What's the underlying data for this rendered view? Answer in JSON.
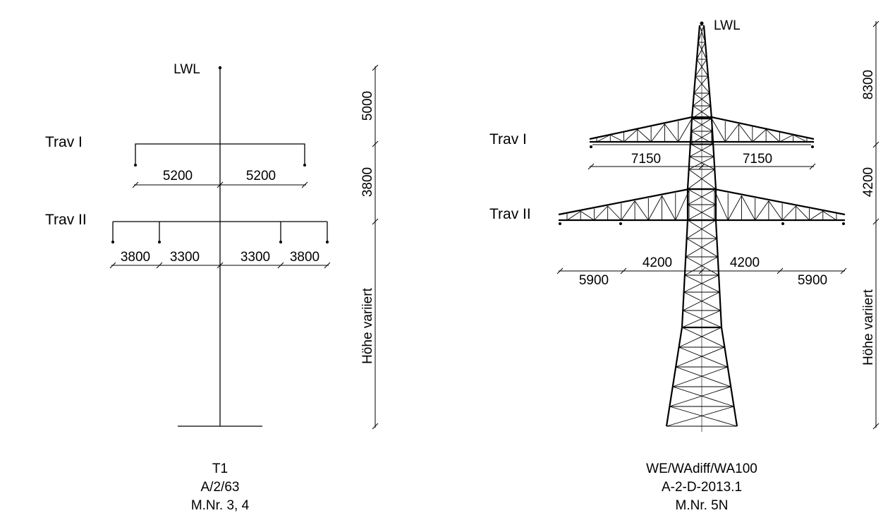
{
  "left_tower": {
    "top_label": "LWL",
    "trav1_label": "Trav I",
    "trav2_label": "Trav II",
    "trav1_dims": [
      "5200",
      "5200"
    ],
    "trav2_dims": [
      "3800",
      "3300",
      "3300",
      "3800"
    ],
    "height_dims": [
      "5000",
      "3800",
      "Höhe variiert"
    ],
    "caption": [
      "T1",
      "A/2/63",
      "M.Nr. 3, 4"
    ]
  },
  "right_tower": {
    "top_label": "LWL",
    "trav1_label": "Trav I",
    "trav2_label": "Trav II",
    "trav1_dims": [
      "7150",
      "7150"
    ],
    "trav2_dims": [
      "5900",
      "4200",
      "4200",
      "5900"
    ],
    "height_dims": [
      "8300",
      "4200",
      "Höhe variiert"
    ],
    "caption": [
      "WE/WAdiff/WA100",
      "A-2-D-2013.1",
      "M.Nr. 5N"
    ]
  }
}
